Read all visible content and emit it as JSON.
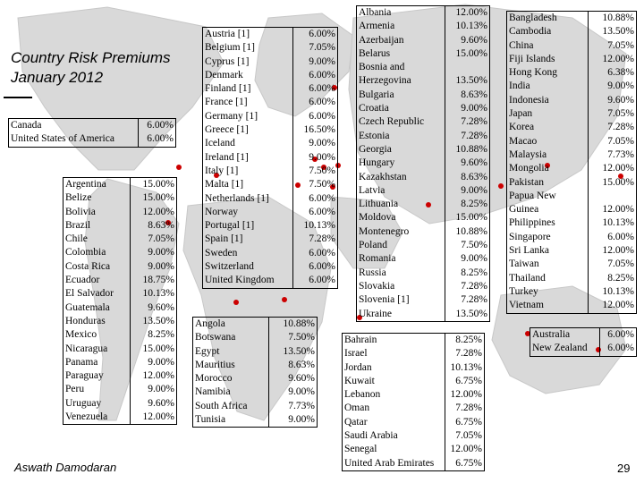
{
  "slide": {
    "title_line1": "Country Risk Premiums",
    "title_line2": "January 2012",
    "author": "Aswath Damodaran",
    "page_number": "29"
  },
  "tables": {
    "north_america": {
      "countries": [
        "Canada",
        "United States of America"
      ],
      "premiums": [
        "6.00%",
        "6.00%"
      ]
    },
    "latin_america": {
      "countries": [
        "Argentina",
        "Belize",
        "Bolivia",
        "Brazil",
        "Chile",
        "Colombia",
        "Costa Rica",
        "Ecuador",
        "El Salvador",
        "Guatemala",
        "Honduras",
        "Mexico",
        "Nicaragua",
        "Panama",
        "Paraguay",
        "Peru",
        "Uruguay",
        "Venezuela"
      ],
      "premiums": [
        "15.00%",
        "15.00%",
        "12.00%",
        "8.63%",
        "7.05%",
        "9.00%",
        "9.00%",
        "18.75%",
        "10.13%",
        "9.60%",
        "13.50%",
        "8.25%",
        "15.00%",
        "9.00%",
        "12.00%",
        "9.00%",
        "9.60%",
        "12.00%"
      ]
    },
    "western_europe": {
      "countries": [
        "Austria [1]",
        "Belgium [1]",
        "Cyprus [1]",
        "Denmark",
        "Finland [1]",
        "France [1]",
        "Germany [1]",
        "Greece [1]",
        "Iceland",
        "Ireland [1]",
        "Italy [1]",
        "Malta [1]",
        "Netherlands [1]",
        "Norway",
        "Portugal [1]",
        "Spain [1]",
        "Sweden",
        "Switzerland",
        "United Kingdom"
      ],
      "premiums": [
        "6.00%",
        "7.05%",
        "9.00%",
        "6.00%",
        "6.00%",
        "6.00%",
        "6.00%",
        "16.50%",
        "9.00%",
        "9.00%",
        "7.50%",
        "7.50%",
        "6.00%",
        "6.00%",
        "10.13%",
        "7.28%",
        "6.00%",
        "6.00%",
        "6.00%"
      ]
    },
    "africa": {
      "countries": [
        "Angola",
        "Botswana",
        "Egypt",
        "Mauritius",
        "Morocco",
        "Namibia",
        "South Africa",
        "Tunisia"
      ],
      "premiums": [
        "10.88%",
        "7.50%",
        "13.50%",
        "8.63%",
        "9.60%",
        "9.00%",
        "7.73%",
        "9.00%"
      ]
    },
    "eastern_europe": {
      "countries": [
        "Albania",
        "Armenia",
        "Azerbaijan",
        "Belarus",
        "Bosnia and Herzegovina",
        "Bulgaria",
        "Croatia",
        "Czech Republic",
        "Estonia",
        "Georgia",
        "Hungary",
        "Kazakhstan",
        "Latvia",
        "Lithuania",
        "Moldova",
        "Montenegro",
        "Poland",
        "Romania",
        "Russia",
        "Slovakia",
        "Slovenia [1]",
        "Ukraine"
      ],
      "premiums": [
        "12.00%",
        "10.13%",
        "9.60%",
        "15.00%",
        "13.50%",
        "8.63%",
        "9.00%",
        "7.28%",
        "7.28%",
        "10.88%",
        "9.60%",
        "8.63%",
        "9.00%",
        "8.25%",
        "15.00%",
        "10.88%",
        "7.50%",
        "9.00%",
        "8.25%",
        "7.28%",
        "7.28%",
        "13.50%"
      ]
    },
    "middle_east": {
      "countries": [
        "Bahrain",
        "Israel",
        "Jordan",
        "Kuwait",
        "Lebanon",
        "Oman",
        "Qatar",
        "Saudi Arabia",
        "Senegal",
        "United Arab Emirates"
      ],
      "premiums": [
        "8.25%",
        "7.28%",
        "10.13%",
        "6.75%",
        "12.00%",
        "7.28%",
        "6.75%",
        "7.05%",
        "12.00%",
        "6.75%"
      ]
    },
    "asia": {
      "countries": [
        "Bangladesh",
        "Cambodia",
        "China",
        "Fiji Islands",
        "Hong Kong",
        "India",
        "Indonesia",
        "Japan",
        "Korea",
        "Macao",
        "Malaysia",
        "Mongolia",
        "Pakistan",
        "Papua New Guinea",
        "Philippines",
        "Singapore",
        "Sri Lanka",
        "Taiwan",
        "Thailand",
        "Turkey",
        "Vietnam"
      ],
      "premiums": [
        "10.88%",
        "13.50%",
        "7.05%",
        "12.00%",
        "6.38%",
        "9.00%",
        "9.60%",
        "7.05%",
        "7.28%",
        "7.05%",
        "7.73%",
        "12.00%",
        "15.00%",
        "12.00%",
        "10.13%",
        "6.00%",
        "12.00%",
        "7.05%",
        "8.25%",
        "10.13%",
        "12.00%"
      ]
    },
    "australia": {
      "countries": [
        "Australia",
        "New Zealand"
      ],
      "premiums": [
        "6.00%",
        "6.00%"
      ]
    }
  },
  "colors": {
    "map_land": "#d9d9d9",
    "map_ocean": "#ffffff",
    "marker": "#cc0000"
  }
}
